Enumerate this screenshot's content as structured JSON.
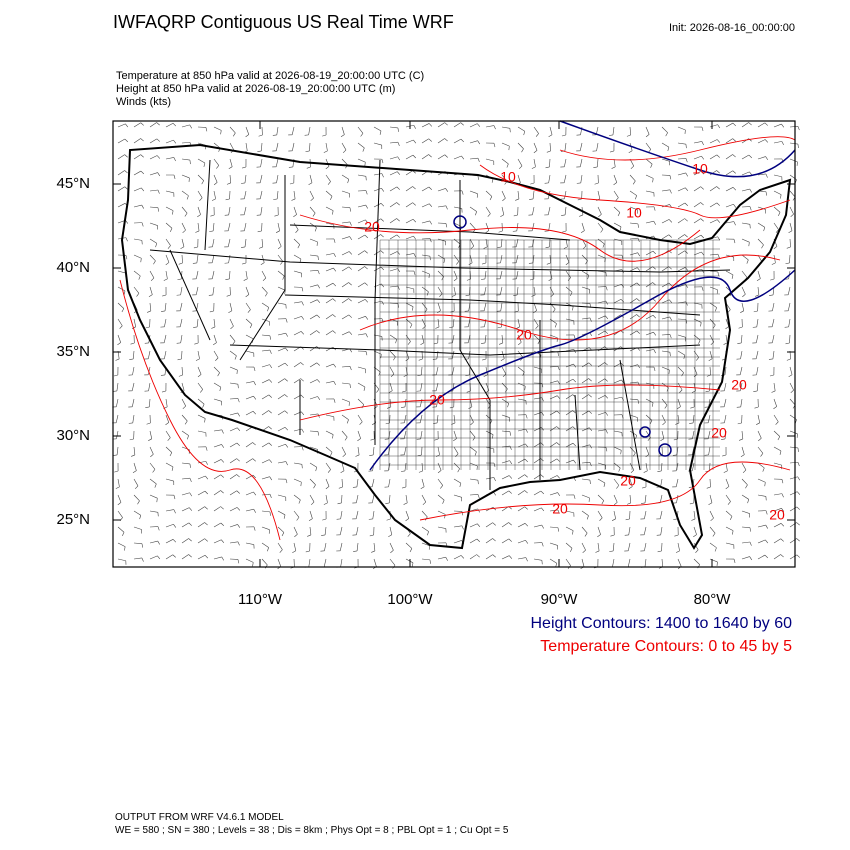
{
  "header": {
    "title": "IWFAQRP Contiguous US Real Time WRF",
    "init": "Init: 2026-08-16_00:00:00"
  },
  "fields": [
    "Temperature at 850 hPa valid at 2026-08-19_20:00:00 UTC   (C)",
    "Height at 850 hPa valid at 2026-08-19_20:00:00 UTC   (m)",
    "Winds   (kts)"
  ],
  "map": {
    "lat_labels": [
      "45°N",
      "40°N",
      "35°N",
      "30°N",
      "25°N"
    ],
    "lon_labels": [
      "110°W",
      "100°W",
      "90°W",
      "80°W"
    ],
    "contour_labels": [
      "10",
      "10",
      "10",
      "20",
      "20",
      "20",
      "20",
      "20",
      "20",
      "20",
      "20"
    ]
  },
  "legend": {
    "height": "Height Contours: 1400 to 1640 by 60",
    "temperature": "Temperature Contours: 0 to 45 by 5"
  },
  "footer": {
    "model": "OUTPUT FROM WRF V4.6.1 MODEL",
    "settings": "WE = 580 ; SN = 380 ; Levels = 38 ; Dis = 8km ; Phys Opt = 8 ; PBL Opt = 1 ; Cu Opt = 5"
  }
}
